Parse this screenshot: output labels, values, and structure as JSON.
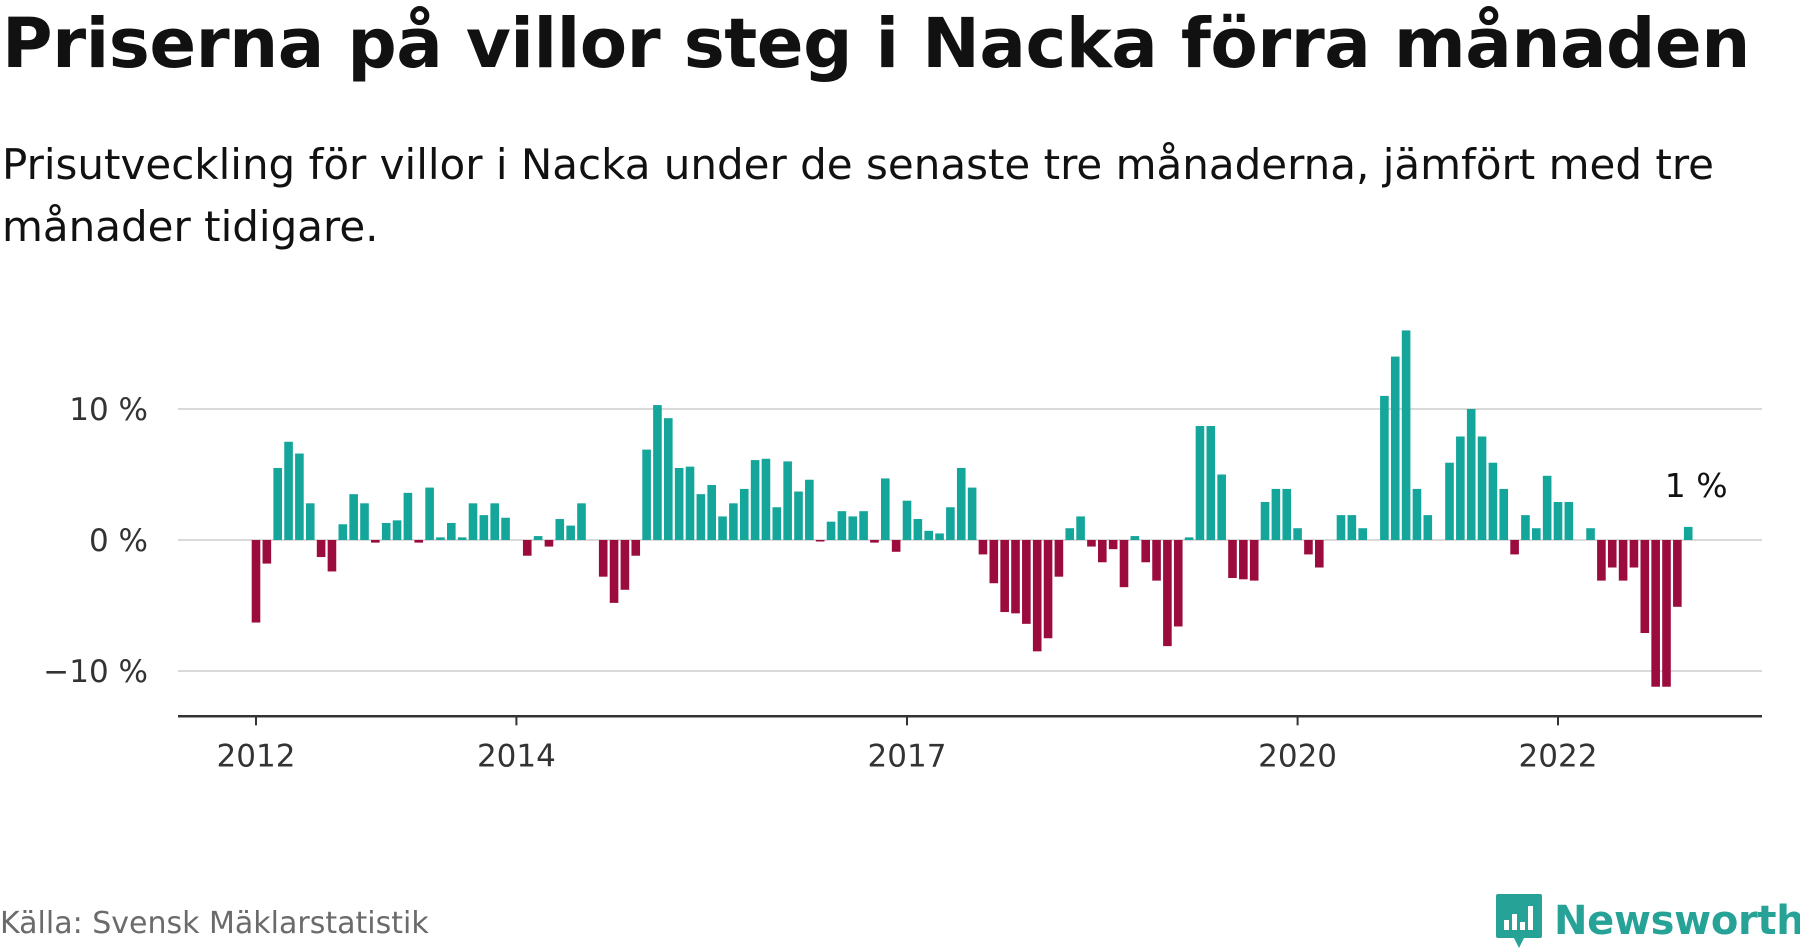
{
  "header": {
    "title": "Priserna på villor steg i Nacka förra månaden",
    "subtitle": "Prisutveckling för villor i Nacka under de senaste tre månaderna, jämfört med tre månader tidigare."
  },
  "footer": {
    "source": "Källa: Svensk Mäklarstatistik",
    "brand": "Newsworthy"
  },
  "colors": {
    "positive": "#14a59b",
    "negative": "#9b0b3d",
    "grid": "#d9d9d9",
    "axis": "#333333",
    "brand": "#26a297"
  },
  "icons": {
    "logo": "newsworthy-chart-badge-icon"
  },
  "chart_data": {
    "type": "bar",
    "title": "",
    "xlabel": "",
    "ylabel": "",
    "ylim": [
      -13,
      16.5
    ],
    "grid": "horizontal",
    "y_ticks": [
      {
        "value": 10,
        "label": "10 %"
      },
      {
        "value": 0,
        "label": "0 %"
      },
      {
        "value": -10,
        "label": "−10 %"
      }
    ],
    "x_ticks": [
      {
        "date": "2012-01",
        "label": "2012"
      },
      {
        "date": "2014-01",
        "label": "2014"
      },
      {
        "date": "2017-01",
        "label": "2017"
      },
      {
        "date": "2020-01",
        "label": "2020"
      },
      {
        "date": "2022-01",
        "label": "2022"
      }
    ],
    "start": "2012-01",
    "values": [
      -6.3,
      -1.8,
      5.5,
      7.5,
      6.6,
      2.8,
      -1.3,
      -2.4,
      1.2,
      3.5,
      2.8,
      -0.2,
      1.3,
      1.5,
      3.6,
      -0.2,
      4.0,
      0.2,
      1.3,
      0.2,
      2.8,
      1.9,
      2.8,
      1.7,
      0.0,
      -1.2,
      0.3,
      -0.5,
      1.6,
      1.1,
      2.8,
      0.0,
      -2.8,
      -4.8,
      -3.8,
      -1.2,
      6.9,
      10.3,
      9.3,
      5.5,
      5.6,
      3.5,
      4.2,
      1.8,
      2.8,
      3.9,
      6.1,
      6.2,
      2.5,
      6.0,
      3.7,
      4.6,
      -0.1,
      1.4,
      2.2,
      1.8,
      2.2,
      -0.2,
      4.7,
      -0.9,
      3.0,
      1.6,
      0.7,
      0.5,
      2.5,
      5.5,
      4.0,
      -1.1,
      -3.3,
      -5.5,
      -5.6,
      -6.4,
      -8.5,
      -7.5,
      -2.8,
      0.9,
      1.8,
      -0.5,
      -1.7,
      -0.7,
      -3.6,
      0.3,
      -1.7,
      -3.1,
      -8.1,
      -6.6,
      0.2,
      8.7,
      8.7,
      5.0,
      -2.9,
      -3.0,
      -3.1,
      2.9,
      3.9,
      3.9,
      0.9,
      -1.1,
      -2.1,
      0.0,
      1.9,
      1.9,
      0.9,
      0.0,
      11.0,
      14.0,
      16.0,
      3.9,
      1.9,
      0.0,
      5.9,
      7.9,
      10.0,
      7.9,
      5.9,
      3.9,
      -1.1,
      1.9,
      0.9,
      4.9,
      2.9,
      2.9,
      0.0,
      0.9,
      -3.1,
      -2.1,
      -3.1,
      -2.1,
      -7.1,
      -11.2,
      -11.2,
      -5.1,
      1.0
    ],
    "annotation": {
      "index": 132,
      "label": "1 %"
    }
  }
}
